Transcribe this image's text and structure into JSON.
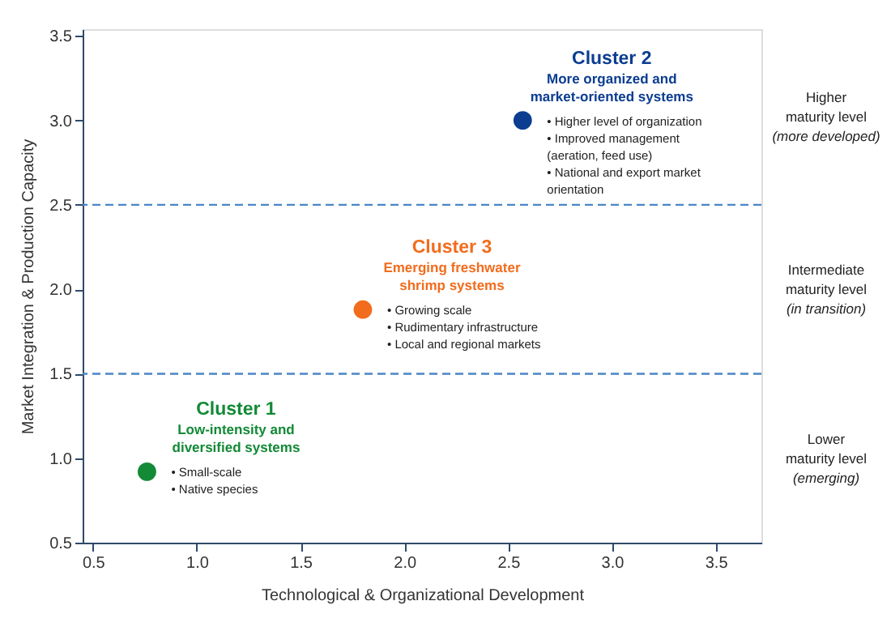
{
  "chart_data": {
    "type": "scatter",
    "xlabel": "Technological & Organizational Development",
    "ylabel": "Market Integration & Production Capacity",
    "xlim": [
      0.45,
      3.72
    ],
    "ylim": [
      0.5,
      3.54
    ],
    "xticks": [
      0.5,
      {
        "value": 1,
        "label": "1.0"
      },
      1.5,
      {
        "value": 2,
        "label": "2.0"
      },
      2.5,
      {
        "value": 3,
        "label": "3.0"
      },
      3.5
    ],
    "yticks": [
      0.5,
      {
        "value": 1,
        "label": "1.0"
      },
      1.5,
      {
        "value": 2,
        "label": "2.0"
      },
      2.5,
      {
        "value": 3,
        "label": "3.0"
      },
      3.5
    ],
    "grid": false,
    "marker": "circle",
    "series": [
      {
        "name": "Cluster 1",
        "color": "#138a36",
        "x": [
          0.76
        ],
        "values": [
          0.92
        ]
      },
      {
        "name": "Cluster 2",
        "color": "#0b3d91",
        "x": [
          2.57
        ],
        "values": [
          3.0
        ]
      },
      {
        "name": "Cluster 3",
        "color": "#f26c1d",
        "x": [
          1.8
        ],
        "values": [
          1.88
        ]
      }
    ],
    "ref_lines": [
      {
        "axis": "y",
        "value": 2.5,
        "color": "#4a86c5",
        "line_style": "dashed"
      },
      {
        "axis": "y",
        "value": 1.5,
        "color": "#4a86c5",
        "line_style": "dashed"
      }
    ],
    "annotations": [
      "Low-intensity and\ndiversified systems",
      "•  Small-scale\n•  Native species",
      "More organized and\nmarket-oriented systems",
      "•  Higher level of organization\n•  Improved management\n    (aeration, feed use)\n•  National and export market\n    orientation",
      "Emerging freshwater\nshrimp systems",
      "•  Growing scale\n•  Rudimentary infrastructure\n•  Local and regional markets",
      "Higher\nmaturity level\n(more developed)",
      "Intermediate\nmaturity level\n(in transition)",
      "Lower\nmaturity level\n(emerging)"
    ]
  }
}
